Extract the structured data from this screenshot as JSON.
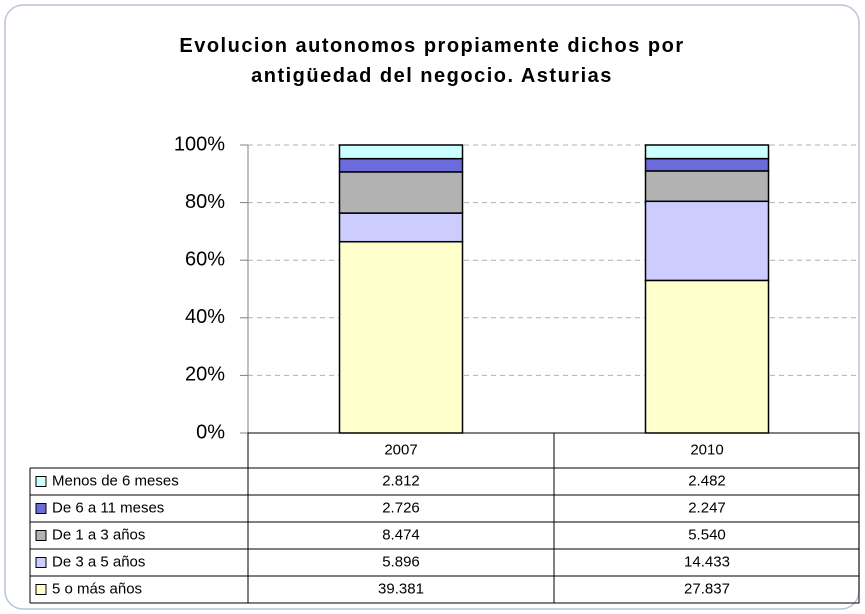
{
  "chart_data": {
    "type": "bar",
    "stacking": "percent",
    "title": "Evolucion autonomos propiamente dichos por antigüedad del negocio. Asturias",
    "categories": [
      "2007",
      "2010"
    ],
    "series": [
      {
        "name": "Menos de 6 meses",
        "color": "#ccffff",
        "values": [
          2812,
          2482
        ],
        "value_labels": [
          "2.812",
          "2.482"
        ]
      },
      {
        "name": "De 6 a 11 meses",
        "color": "#6b6bdc",
        "values": [
          2726,
          2247
        ],
        "value_labels": [
          "2.726",
          "2.247"
        ]
      },
      {
        "name": "De 1 a 3 años",
        "color": "#b2b2b2",
        "values": [
          8474,
          5540
        ],
        "value_labels": [
          "8.474",
          "5.540"
        ]
      },
      {
        "name": "De 3 a 5 años",
        "color": "#ccccff",
        "values": [
          5896,
          14433
        ],
        "value_labels": [
          "5.896",
          "14.433"
        ]
      },
      {
        "name": "5 o más años",
        "color": "#ffffcc",
        "values": [
          39381,
          27837
        ],
        "value_labels": [
          "39.381",
          "27.837"
        ]
      }
    ],
    "ylim": [
      0,
      100
    ],
    "yticks": [
      {
        "value": 0,
        "label": "0%"
      },
      {
        "value": 20,
        "label": "20%"
      },
      {
        "value": 40,
        "label": "40%"
      },
      {
        "value": 60,
        "label": "60%"
      },
      {
        "value": 80,
        "label": "80%"
      },
      {
        "value": 100,
        "label": "100%"
      }
    ],
    "grid": true
  }
}
